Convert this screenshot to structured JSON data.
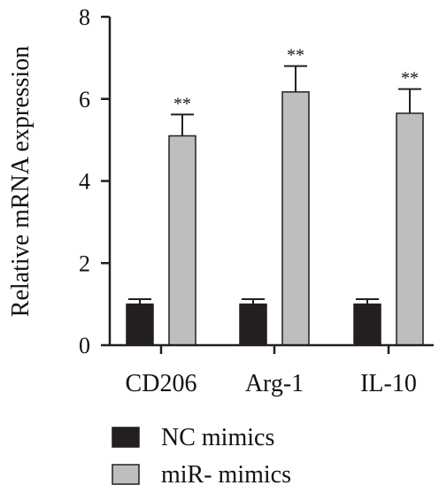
{
  "chart_data": {
    "type": "bar",
    "title": "",
    "xlabel": "",
    "ylabel": "Relative mRNA expression",
    "ylim": [
      0,
      8
    ],
    "yticks": [
      0,
      2,
      4,
      6,
      8
    ],
    "categories": [
      "CD206",
      "Arg-1",
      "IL-10"
    ],
    "series": [
      {
        "name": "NC mimics",
        "color": "#231f20",
        "values": [
          1.0,
          1.0,
          1.0
        ],
        "errors": [
          0.12,
          0.12,
          0.12
        ],
        "annotations": [
          "",
          "",
          ""
        ]
      },
      {
        "name": "miR- mimics",
        "color": "#bcbec0",
        "values": [
          5.1,
          6.17,
          5.65
        ],
        "errors": [
          0.52,
          0.63,
          0.59
        ],
        "annotations": [
          "**",
          "**",
          "**"
        ]
      }
    ],
    "grid": false,
    "legend_position": "bottom-center"
  }
}
